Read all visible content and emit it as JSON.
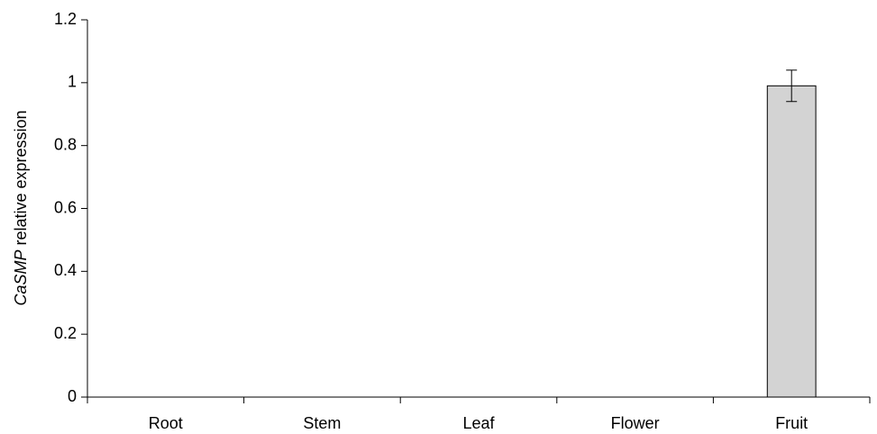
{
  "chart_data": {
    "type": "bar",
    "ylabel": {
      "italic": "CaSMP",
      "rest": "relative expression"
    },
    "categories": [
      "Root",
      "Stem",
      "Leaf",
      "Flower",
      "Fruit"
    ],
    "values": [
      0,
      0,
      0,
      0,
      0.99
    ],
    "errors": [
      0,
      0,
      0,
      0,
      0.05
    ],
    "color": "#d3d3d3",
    "ylim": [
      0,
      1.2
    ],
    "yticks": [
      0,
      0.2,
      0.4,
      0.6,
      0.8,
      1,
      1.2
    ],
    "grid": false
  }
}
